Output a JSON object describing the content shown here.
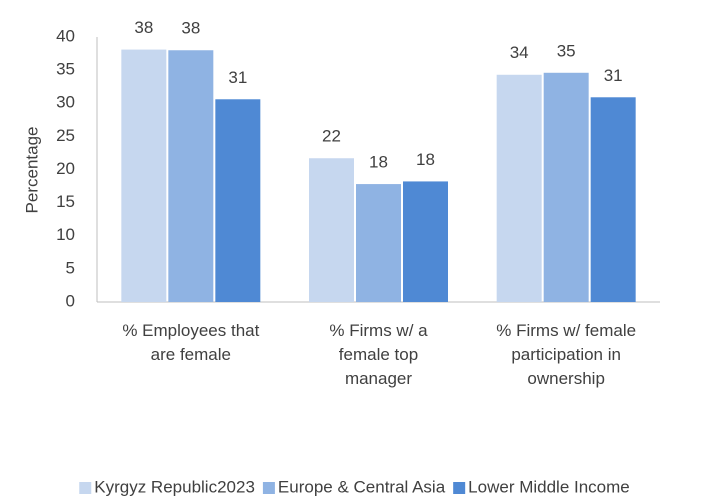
{
  "chart_data": {
    "type": "bar",
    "y_label": "Percentage",
    "categories": [
      "% Employees that are female",
      "% Firms w/ a female top manager",
      "% Firms w/ female participation in ownership"
    ],
    "series": [
      {
        "name": "Kyrgyz Republic2023",
        "color": "#c6d7ef",
        "values": [
          38.1,
          21.7,
          34.3
        ],
        "value_labels": [
          "38",
          "22",
          "34"
        ]
      },
      {
        "name": "Europe & Central Asia",
        "color": "#8fb3e3",
        "values": [
          38.0,
          17.8,
          34.6
        ],
        "value_labels": [
          "38",
          "18",
          "35"
        ]
      },
      {
        "name": "Lower Middle Income",
        "color": "#4f89d4",
        "values": [
          30.6,
          18.2,
          30.9
        ],
        "value_labels": [
          "31",
          "18",
          "31"
        ]
      }
    ],
    "ylim": [
      0,
      40
    ],
    "yticks": [
      0,
      5,
      10,
      15,
      20,
      25,
      30,
      35,
      40
    ],
    "grid": false,
    "legend": "bottom"
  }
}
